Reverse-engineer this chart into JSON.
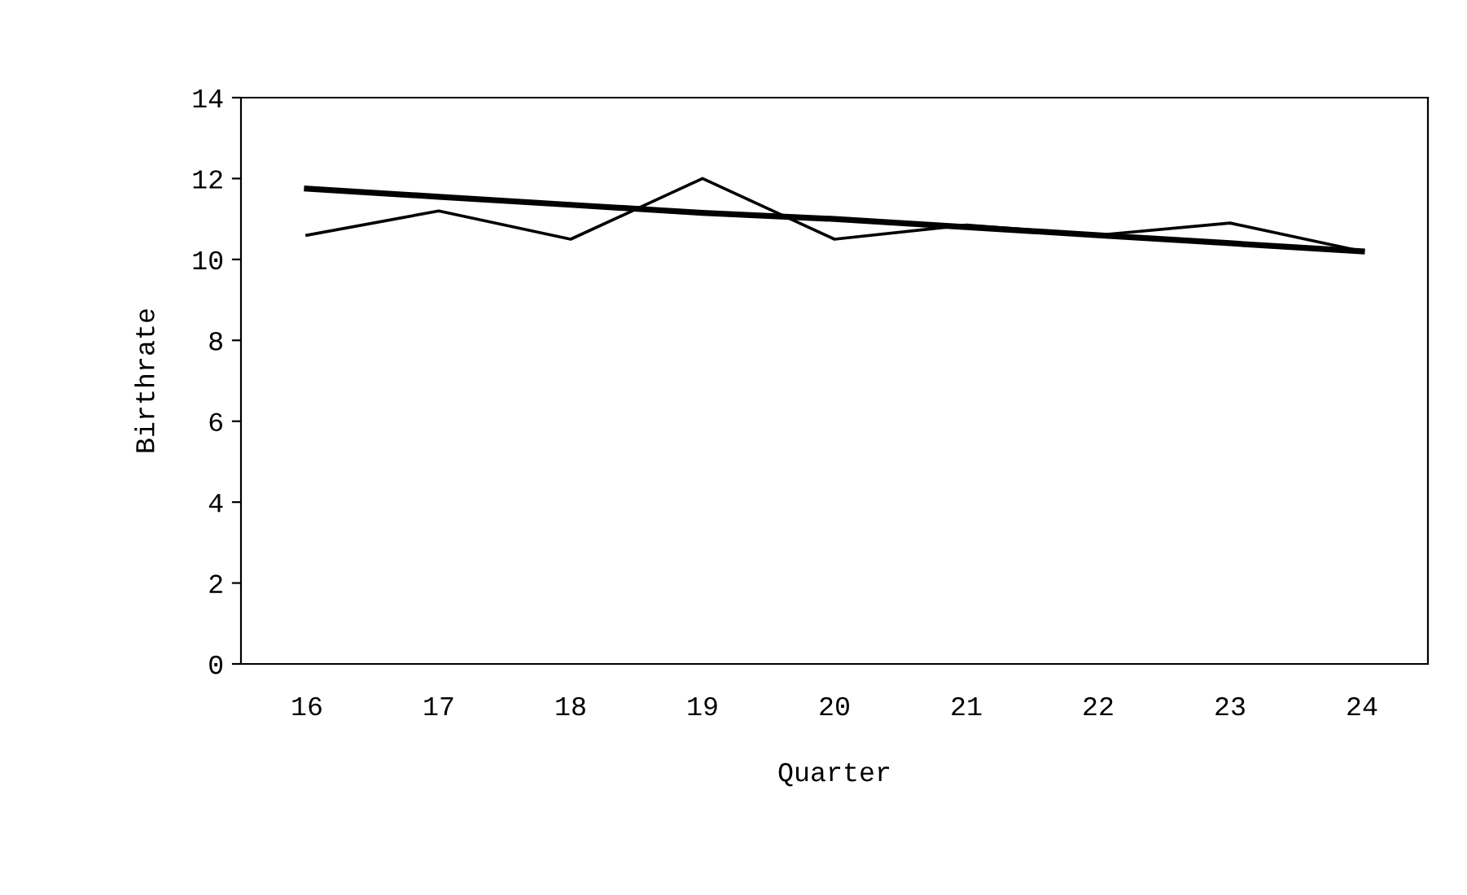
{
  "chart_data": {
    "type": "line",
    "xlabel": "Quarter",
    "ylabel": "Birthrate",
    "categories": [
      "16",
      "17",
      "18",
      "19",
      "20",
      "21",
      "22",
      "23",
      "24"
    ],
    "series": [
      {
        "color": "#000000",
        "values": [
          10.6,
          11.2,
          10.5,
          12.0,
          10.5,
          10.85,
          10.6,
          10.9,
          10.2
        ]
      },
      {
        "color": "#000000",
        "values": [
          11.75,
          11.55,
          11.35,
          11.15,
          11.0,
          10.8,
          10.6,
          10.4,
          10.2
        ]
      }
    ],
    "ylim": [
      0,
      14
    ],
    "yticks": [
      0,
      2,
      4,
      6,
      8,
      10,
      12,
      14
    ],
    "grid": false,
    "marker": "none",
    "line_style": "solid"
  }
}
